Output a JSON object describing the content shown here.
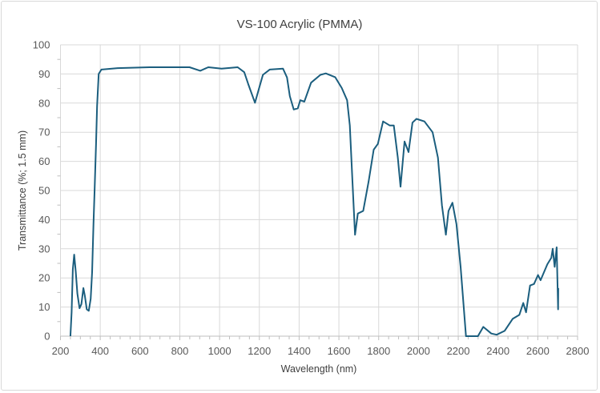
{
  "chart_data": {
    "type": "line",
    "title": "VS-100 Acrylic (PMMA)",
    "xlabel": "Wavelength (nm)",
    "ylabel": "Transmittance (%; 1.5 mm)",
    "xlim": [
      200,
      2800
    ],
    "ylim": [
      0,
      100
    ],
    "xticks": [
      200,
      400,
      600,
      800,
      1000,
      1200,
      1400,
      1600,
      1800,
      2000,
      2200,
      2400,
      2600,
      2800
    ],
    "yticks": [
      0,
      10,
      20,
      30,
      40,
      50,
      60,
      70,
      80,
      90,
      100
    ],
    "grid": true,
    "legend": "none",
    "line_color": "#1b5e7e",
    "series": [
      {
        "x": [
          250,
          256,
          262,
          269,
          277,
          285,
          296,
          305,
          315,
          323,
          332,
          342,
          352,
          359,
          366,
          372,
          379,
          384,
          392,
          406,
          487,
          648,
          849,
          903,
          943,
          1010,
          1091,
          1124,
          1144,
          1178,
          1198,
          1218,
          1252,
          1319,
          1339,
          1353,
          1373,
          1393,
          1406,
          1426,
          1460,
          1507,
          1534,
          1581,
          1614,
          1641,
          1655,
          1668,
          1681,
          1695,
          1722,
          1749,
          1775,
          1796,
          1822,
          1856,
          1876,
          1896,
          1910,
          1930,
          1950,
          1970,
          1990,
          2030,
          2071,
          2098,
          2118,
          2138,
          2151,
          2171,
          2191,
          2212,
          2239,
          2299,
          2326,
          2366,
          2393,
          2433,
          2474,
          2507,
          2527,
          2541,
          2561,
          2581,
          2601,
          2614,
          2648,
          2668,
          2675,
          2685,
          2695,
          2702,
          2703
        ],
        "y": [
          0,
          8.2,
          22.9,
          28,
          22,
          14.6,
          9.6,
          11,
          16.5,
          13.7,
          9.2,
          8.7,
          12.8,
          22,
          38.5,
          51,
          66,
          79,
          90,
          91.5,
          92,
          92.3,
          92.3,
          91.1,
          92.3,
          91.8,
          92.3,
          90.6,
          86.5,
          80.1,
          85,
          89.7,
          91.5,
          91.8,
          88.8,
          82.4,
          77.8,
          78.2,
          81,
          80.5,
          87,
          89.7,
          90.2,
          88.9,
          85.2,
          81,
          72.3,
          53,
          34.8,
          42.1,
          43,
          53,
          64,
          66,
          73.7,
          72.3,
          72.3,
          61.3,
          51.3,
          66.8,
          63.2,
          73.3,
          74.6,
          73.7,
          70,
          61.3,
          44.9,
          34.8,
          43,
          45.8,
          38.5,
          23.8,
          0,
          0,
          3.2,
          0.9,
          0.5,
          1.8,
          6,
          7.3,
          11.4,
          8.2,
          17.4,
          17.9,
          21,
          19.2,
          24.7,
          26.9,
          30,
          23.8,
          30.5,
          9.2,
          16.5
        ]
      }
    ]
  }
}
